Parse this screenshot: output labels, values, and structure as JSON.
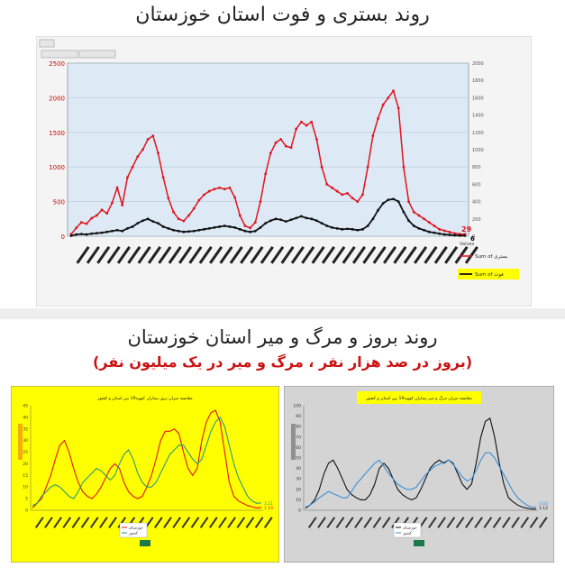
{
  "panel_top": {
    "title": "روند بستری و فوت استان خوزستان"
  },
  "panel_bottom": {
    "title": "روند بروز و مرگ و میر استان خوزستان",
    "subtitle": "(بروز در صد هزار نفر ، مرگ و میر در یک میلیون نفر)"
  },
  "colors": {
    "hosp": "#e0141e",
    "death": "#111111",
    "plot_bg": "#dde9f5",
    "yellow": "#ffff00",
    "gray": "#d4d4d4",
    "blue": "#3a8fd6",
    "teal": "#2a9a7a"
  },
  "chart_data": [
    {
      "type": "line",
      "y_left_ticks": [
        "0",
        "500",
        "1000",
        "1500",
        "2000",
        "2500"
      ],
      "y_right_ticks": [
        "0",
        "200",
        "400",
        "600",
        "800",
        "1000",
        "1200",
        "1400",
        "1600",
        "1800",
        "2000"
      ],
      "ylim_left": [
        0,
        2500
      ],
      "ylim_right": [
        0,
        2000
      ],
      "series": [
        {
          "name": "Sum of بستری",
          "axis": "left",
          "values": [
            30,
            120,
            200,
            180,
            260,
            300,
            380,
            330,
            480,
            700,
            450,
            850,
            1000,
            1150,
            1250,
            1400,
            1450,
            1200,
            850,
            550,
            350,
            250,
            220,
            300,
            400,
            520,
            600,
            650,
            680,
            700,
            680,
            700,
            560,
            300,
            150,
            120,
            200,
            500,
            900,
            1200,
            1350,
            1400,
            1300,
            1280,
            1550,
            1650,
            1600,
            1650,
            1400,
            1000,
            750,
            700,
            650,
            600,
            620,
            550,
            500,
            600,
            1000,
            1450,
            1700,
            1900,
            2000,
            2100,
            1850,
            1000,
            500,
            350,
            300,
            250,
            200,
            150,
            100,
            80,
            60,
            40,
            30,
            29
          ]
        },
        {
          "name": "Sum of فوت",
          "axis": "right",
          "values": [
            5,
            20,
            25,
            20,
            30,
            35,
            40,
            50,
            60,
            70,
            60,
            90,
            110,
            150,
            180,
            200,
            170,
            150,
            110,
            90,
            70,
            60,
            50,
            55,
            60,
            70,
            80,
            90,
            100,
            110,
            120,
            110,
            100,
            80,
            60,
            50,
            60,
            100,
            150,
            180,
            200,
            190,
            170,
            190,
            210,
            230,
            210,
            200,
            180,
            150,
            120,
            100,
            90,
            80,
            85,
            80,
            70,
            80,
            120,
            200,
            300,
            380,
            420,
            430,
            400,
            280,
            180,
            120,
            90,
            70,
            50,
            40,
            30,
            20,
            15,
            10,
            7,
            6
          ]
        }
      ],
      "end_labels": [
        "29",
        "6"
      ],
      "legend_title": "Values",
      "legend": [
        "Sum of بستری",
        "Sum of فوت"
      ]
    },
    {
      "type": "line",
      "title": "مقایسه میزان بروز بیماران کووید19 بین استان و کشور",
      "y_ticks": [
        "0",
        "5",
        "10",
        "15",
        "20",
        "25",
        "30",
        "35",
        "40",
        "45"
      ],
      "ylim": [
        0,
        45
      ],
      "legend": [
        "خوزستان",
        "کشور"
      ],
      "series": [
        {
          "name": "خوزستان",
          "values": [
            1,
            3,
            5,
            10,
            15,
            22,
            28,
            30,
            25,
            18,
            12,
            8,
            6,
            5,
            7,
            10,
            14,
            18,
            20,
            18,
            12,
            8,
            6,
            5,
            6,
            10,
            15,
            22,
            30,
            34,
            34,
            35,
            33,
            25,
            18,
            15,
            18,
            30,
            38,
            42,
            43,
            38,
            25,
            12,
            6,
            4,
            3,
            2,
            1.5,
            1,
            1.2
          ]
        },
        {
          "name": "کشور",
          "values": [
            2,
            3,
            6,
            8,
            10,
            11,
            10,
            8,
            6,
            5,
            8,
            12,
            14,
            16,
            18,
            17,
            15,
            13,
            15,
            20,
            24,
            26,
            22,
            16,
            12,
            10,
            10,
            12,
            16,
            20,
            24,
            26,
            28,
            28,
            25,
            22,
            20,
            22,
            28,
            34,
            38,
            40,
            36,
            28,
            20,
            14,
            10,
            6,
            4,
            3,
            3.2
          ]
        }
      ],
      "end_labels": [
        "3.21",
        "1.19"
      ]
    },
    {
      "type": "line",
      "title": "مقایسه میزان مرگ و میر بیماران کووید19 بین استان و کشور",
      "y_ticks": [
        "0",
        "10",
        "20",
        "30",
        "40",
        "50",
        "60",
        "70",
        "80",
        "90",
        "100"
      ],
      "ylim": [
        0,
        100
      ],
      "legend": [
        "خوزستان",
        "کشور"
      ],
      "series": [
        {
          "name": "خوزستان",
          "values": [
            2,
            5,
            10,
            20,
            35,
            45,
            48,
            40,
            30,
            20,
            15,
            12,
            10,
            10,
            15,
            25,
            40,
            45,
            40,
            30,
            20,
            15,
            12,
            10,
            12,
            20,
            30,
            40,
            45,
            48,
            45,
            48,
            45,
            35,
            25,
            20,
            25,
            45,
            70,
            85,
            88,
            70,
            45,
            25,
            12,
            8,
            5,
            3,
            2,
            1.2,
            1.1
          ]
        },
        {
          "name": "کشور",
          "values": [
            3,
            5,
            8,
            12,
            15,
            18,
            16,
            14,
            12,
            12,
            18,
            25,
            30,
            35,
            40,
            45,
            48,
            42,
            35,
            30,
            25,
            22,
            20,
            20,
            22,
            28,
            34,
            38,
            42,
            44,
            46,
            48,
            44,
            38,
            32,
            28,
            30,
            38,
            48,
            55,
            55,
            50,
            42,
            34,
            26,
            18,
            12,
            8,
            5,
            3,
            3
          ]
        }
      ],
      "end_labels": [
        "3.03",
        "1.12"
      ]
    }
  ]
}
